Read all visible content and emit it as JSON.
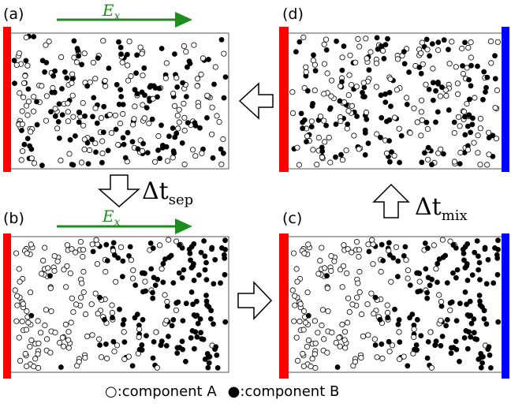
{
  "panels": [
    {
      "id": "a",
      "label": "(a)",
      "field_label": "E",
      "field_sub": "x",
      "state": "mixed",
      "left_electrode": "red",
      "right_electrode": "none"
    },
    {
      "id": "b",
      "label": "(b)",
      "field_label": "E",
      "field_sub": "x",
      "state": "separated",
      "left_electrode": "red",
      "right_electrode": "none"
    },
    {
      "id": "c",
      "label": "(c)",
      "field_label": "",
      "field_sub": "",
      "state": "separated",
      "left_electrode": "red",
      "right_electrode": "blue"
    },
    {
      "id": "d",
      "label": "(d)",
      "field_label": "",
      "field_sub": "",
      "state": "mixed",
      "left_electrode": "red",
      "right_electrode": "blue"
    }
  ],
  "transitions": {
    "sep": {
      "symbol": "Δt",
      "sub": "sep"
    },
    "mix": {
      "symbol": "Δt",
      "sub": "mix"
    }
  },
  "legend": {
    "open_symbol": "○",
    "open_text": ":component A",
    "filled_symbol": "●",
    "filled_text": ":component B"
  },
  "colors": {
    "field_arrow": "#1e8c1e",
    "electrode_left": "#ff0000",
    "electrode_right": "#0000ff"
  }
}
